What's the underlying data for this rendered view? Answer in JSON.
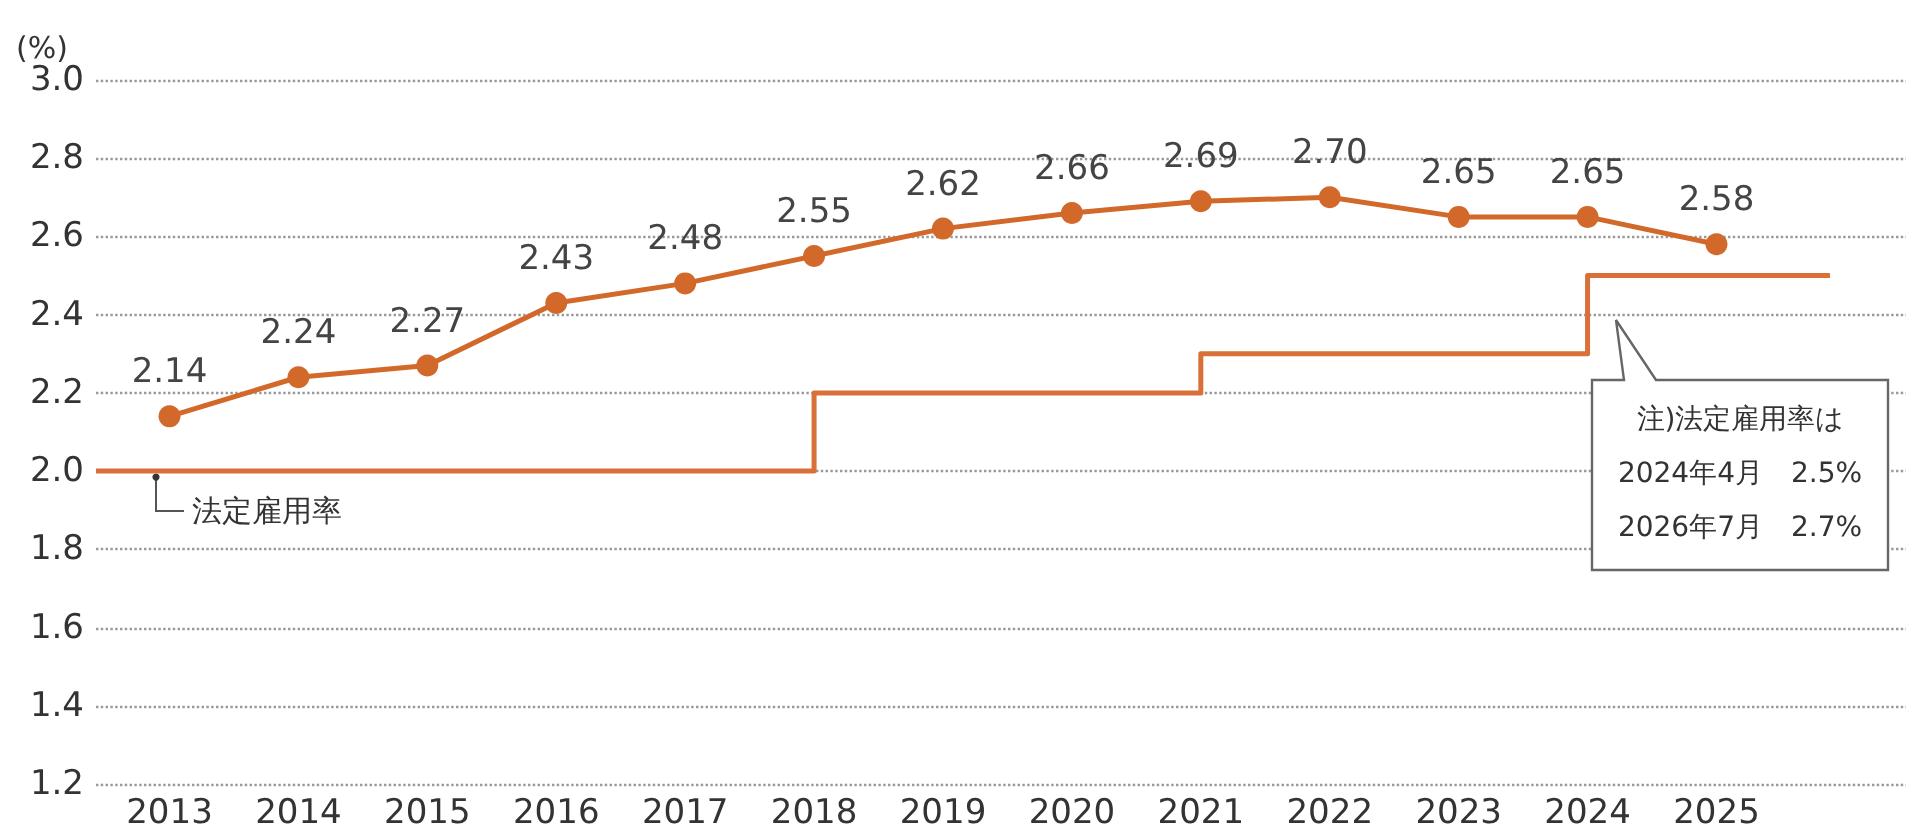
{
  "chart_data": {
    "type": "line",
    "ylabel": "(%)",
    "xlim": [
      2012.43,
      2026.47
    ],
    "xticks": [
      2013,
      2014,
      2015,
      2016,
      2017,
      2018,
      2019,
      2020,
      2021,
      2022,
      2023,
      2024,
      2025
    ],
    "ylim": [
      1.2,
      3.0
    ],
    "yticks": [
      {
        "value": 1.2,
        "label": "1.2"
      },
      {
        "value": 1.4,
        "label": "1.4"
      },
      {
        "value": 1.6,
        "label": "1.6"
      },
      {
        "value": 1.8,
        "label": "1.8"
      },
      {
        "value": 2.0,
        "label": "2.0"
      },
      {
        "value": 2.2,
        "label": "2.2"
      },
      {
        "value": 2.4,
        "label": "2.4"
      },
      {
        "value": 2.6,
        "label": "2.6"
      },
      {
        "value": 2.8,
        "label": "2.8"
      },
      {
        "value": 3.0,
        "label": "3.0"
      }
    ],
    "series": [
      {
        "type": "line",
        "color": "#d2692a",
        "marker": "circle",
        "value_labels": [
          "2.14",
          "2.24",
          "2.27",
          "2.43",
          "2.48",
          "2.55",
          "2.62",
          "2.66",
          "2.69",
          "2.70",
          "2.65",
          "2.65",
          "2.58"
        ],
        "x": [
          2013,
          2014,
          2015,
          2016,
          2017,
          2018,
          2019,
          2020,
          2021,
          2022,
          2023,
          2024,
          2025
        ],
        "values": [
          2.14,
          2.24,
          2.27,
          2.43,
          2.48,
          2.55,
          2.62,
          2.66,
          2.69,
          2.7,
          2.65,
          2.65,
          2.58
        ]
      },
      {
        "type": "step",
        "name": "法定雇用率",
        "color": "#d9703a",
        "marker": "none",
        "x": [
          2012.43,
          2018,
          2021,
          2024,
          2025.88
        ],
        "values": [
          2.0,
          2.2,
          2.3,
          2.5,
          2.5
        ]
      }
    ],
    "annotations": [
      "注)法定雇用率は\n2024年4月　2.5%\n2026年7月　2.7%"
    ],
    "grid": "y",
    "legend": false
  }
}
